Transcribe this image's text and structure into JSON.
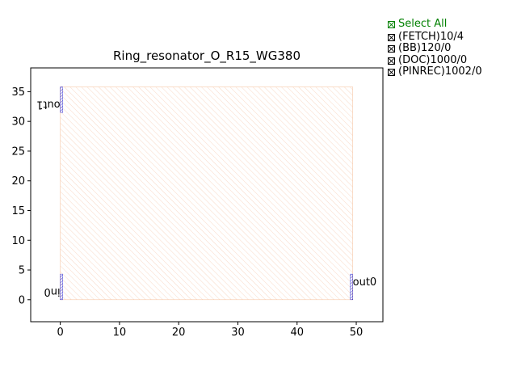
{
  "chart_data": {
    "type": "layout",
    "title": "Ring_resonator_O_R15_WG380",
    "xlabel": "",
    "ylabel": "",
    "xlim": [
      -5,
      54.5
    ],
    "ylim": [
      -3.7,
      39
    ],
    "xticks": [
      0,
      10,
      20,
      30,
      40,
      50
    ],
    "yticks": [
      0,
      5,
      10,
      15,
      20,
      25,
      30,
      35
    ],
    "grid": false,
    "boundary": {
      "x0": 0,
      "y0": 0,
      "x1": 49.4,
      "y1": 35.8,
      "color": "#f7c8a8",
      "hatch": "////"
    },
    "ports": [
      {
        "name": "in0",
        "x0": 0,
        "x1": 0.38,
        "y0": 0,
        "y1": 4.3,
        "label_x": 0,
        "label_y": 1.4,
        "label_rotation": 180,
        "label_anchor": "end"
      },
      {
        "name": "out0",
        "x0": 49.0,
        "x1": 49.4,
        "y0": 0,
        "y1": 4.3,
        "label_x": 49.4,
        "label_y": 2.9,
        "label_rotation": 0,
        "label_anchor": "start"
      },
      {
        "name": "out1",
        "x0": 0,
        "x1": 0.38,
        "y0": 31.5,
        "y1": 35.8,
        "label_x": 0,
        "label_y": 32.9,
        "label_rotation": 180,
        "label_anchor": "end"
      }
    ],
    "port_color": "#0000cc"
  },
  "legend": {
    "select_all": "Select All",
    "items": [
      "(FETCH)10/4",
      "(BB)120/0",
      "(DOC)1000/0",
      "(PINREC)1002/0"
    ],
    "select_color": "#008000"
  }
}
